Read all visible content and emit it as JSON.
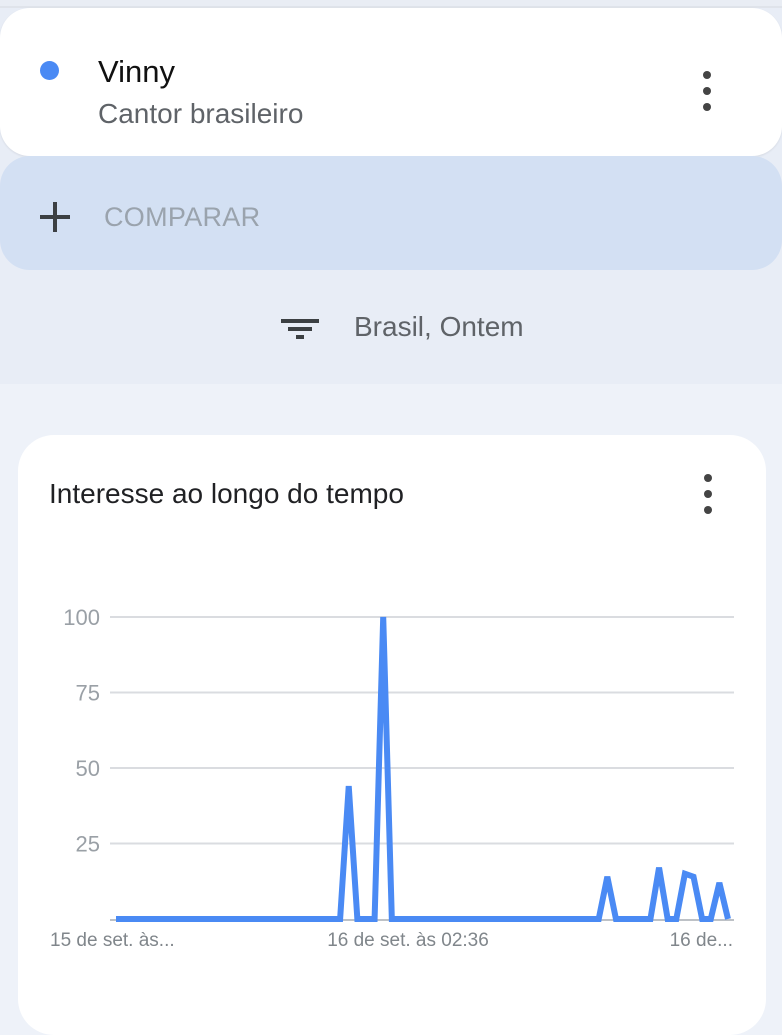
{
  "term": {
    "name": "Vinny",
    "subtitle": "Cantor brasileiro",
    "color": "#4a8af4"
  },
  "compare": {
    "label": "COMPARAR"
  },
  "filter": {
    "label": "Brasil, Ontem"
  },
  "chart_card": {
    "title": "Interesse ao longo do tempo"
  },
  "chart_data": {
    "type": "line",
    "title": "Interesse ao longo do tempo",
    "ylim": [
      0,
      100
    ],
    "yticks": [
      100,
      75,
      50,
      25
    ],
    "grid": true,
    "line_color": "#4a8af4",
    "x_tick_labels": [
      {
        "index": 0,
        "label": "15 de set. às..."
      },
      {
        "index": 34,
        "label": "16 de set. às 02:36"
      },
      {
        "index": 71,
        "label": "16 de..."
      }
    ],
    "series": [
      {
        "values": [
          0,
          0,
          0,
          0,
          0,
          0,
          0,
          0,
          0,
          0,
          0,
          0,
          0,
          0,
          0,
          0,
          0,
          0,
          0,
          0,
          0,
          0,
          0,
          0,
          0,
          0,
          0,
          44,
          0,
          0,
          0,
          100,
          0,
          0,
          0,
          0,
          0,
          0,
          0,
          0,
          0,
          0,
          0,
          0,
          0,
          0,
          0,
          0,
          0,
          0,
          0,
          0,
          0,
          0,
          0,
          0,
          0,
          14,
          0,
          0,
          0,
          0,
          0,
          17,
          0,
          0,
          15,
          14,
          0,
          0,
          12,
          0
        ]
      }
    ]
  }
}
